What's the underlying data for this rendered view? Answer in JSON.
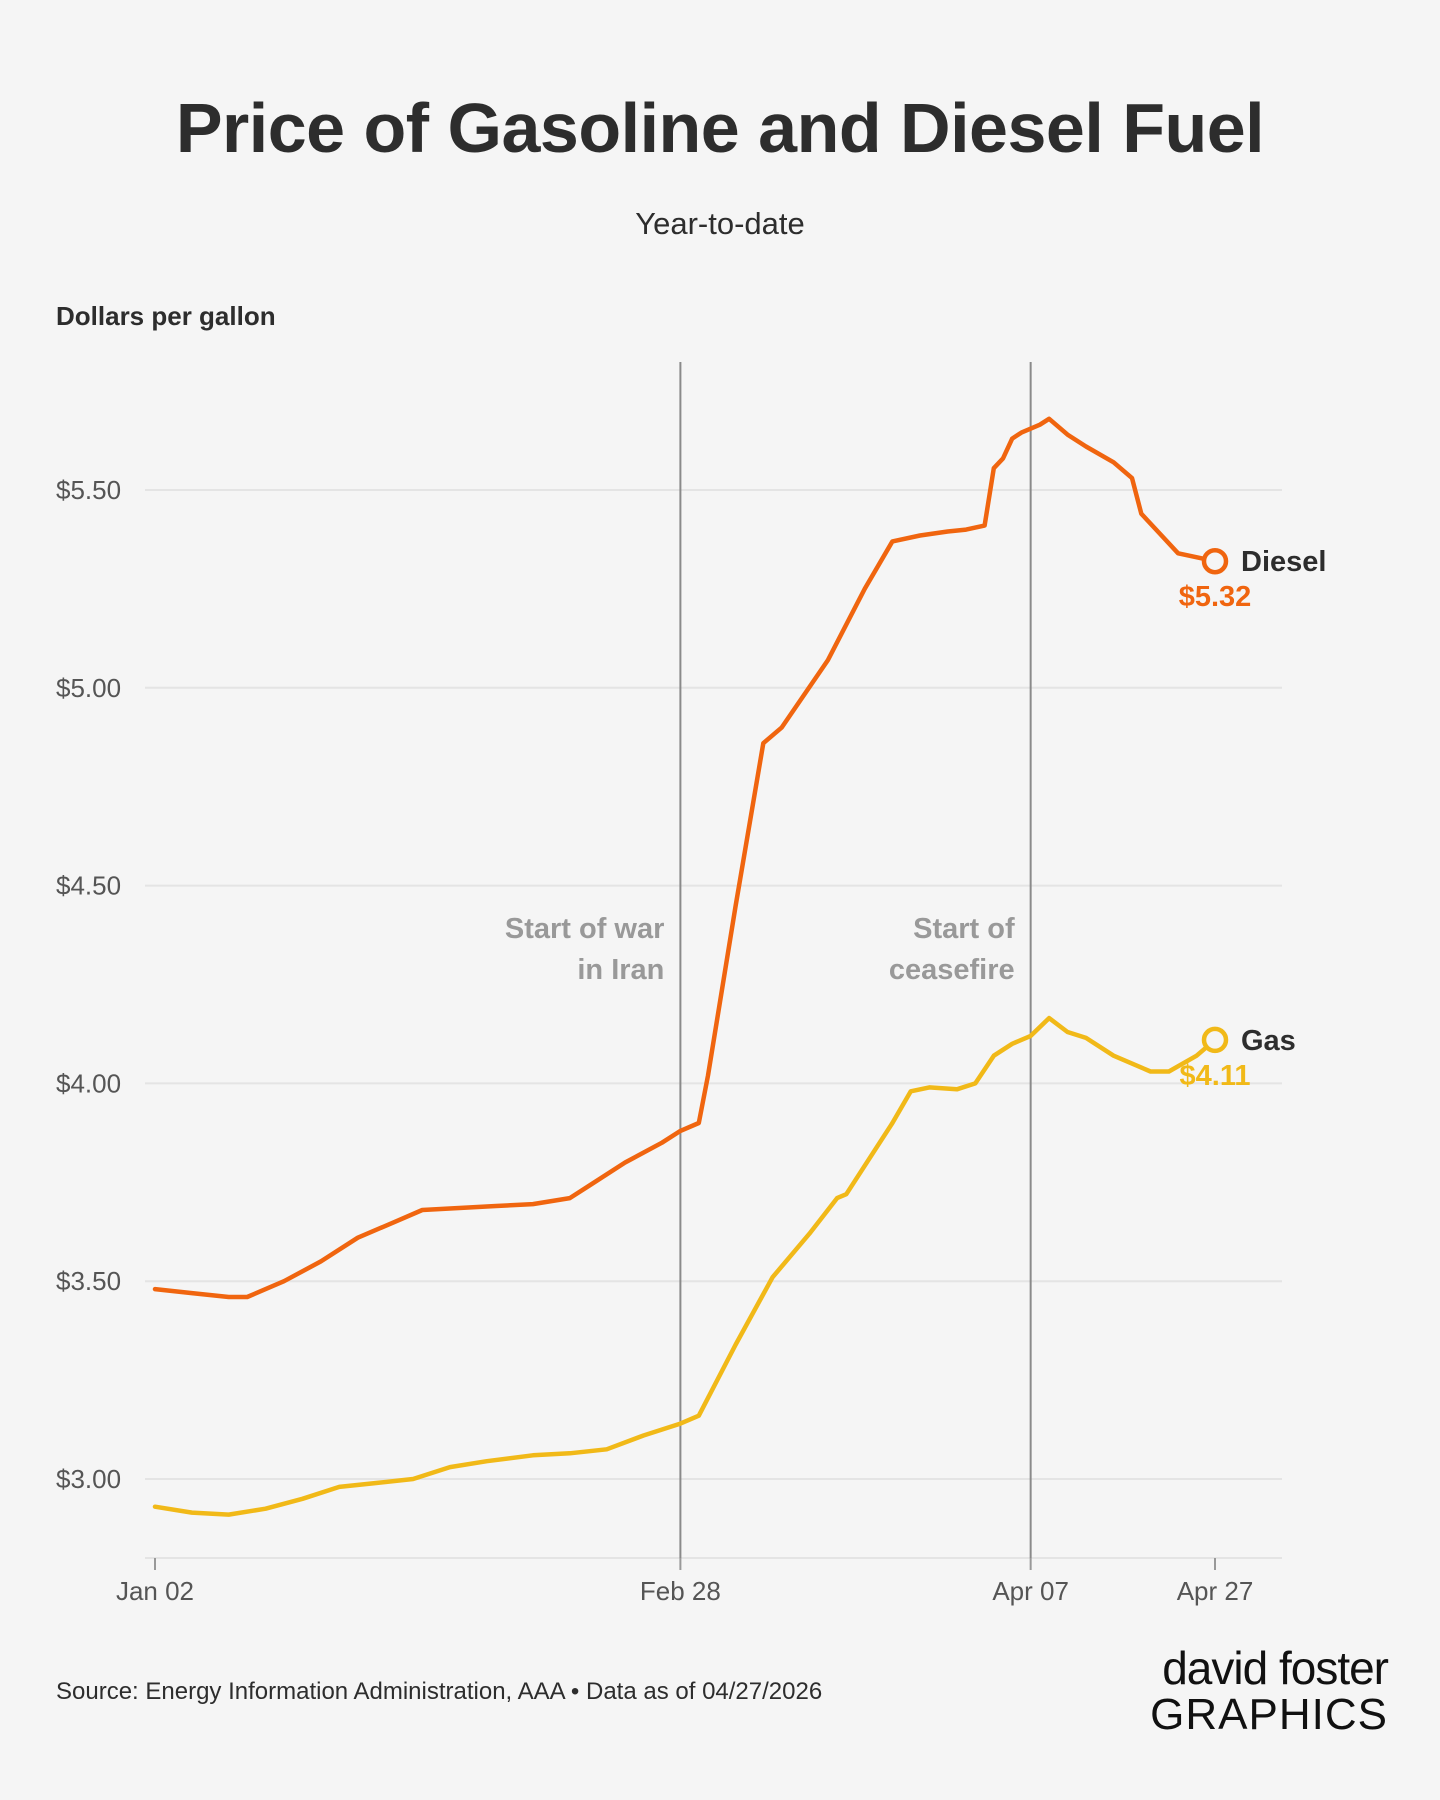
{
  "title": "Price of Gasoline and Diesel Fuel",
  "subtitle": "Year-to-date",
  "source": "Source: Energy Information Administration, AAA • Data as of 04/27/2026",
  "logo": {
    "line1": "david foster",
    "line2": "GRAPHICS"
  },
  "colors": {
    "diesel": "#f0650f",
    "gas": "#f1b918",
    "grid": "#e4e4e4",
    "vline": "#8a8a8a",
    "annotation": "#999999",
    "text": "#2d2d2d"
  },
  "chart_data": {
    "type": "line",
    "title": "Price of Gasoline and Diesel Fuel",
    "subtitle": "Year-to-date",
    "ylabel": "Dollars per gallon",
    "ylim": [
      2.8,
      5.75
    ],
    "yticks": [
      3.0,
      3.5,
      4.0,
      4.5,
      5.0,
      5.5
    ],
    "ytick_labels": [
      "$3.00",
      "$3.50",
      "$4.00",
      "$4.50",
      "$5.00",
      "$5.50"
    ],
    "xlim": [
      "2026-01-02",
      "2026-04-27"
    ],
    "xticks": [
      "2026-01-02",
      "2026-02-28",
      "2026-04-07",
      "2026-04-27"
    ],
    "xtick_labels": [
      "Jan 02",
      "Feb 28",
      "Apr 07",
      "Apr 27"
    ],
    "grid": true,
    "legend": "direct labels at line ends",
    "annotations": [
      {
        "date": "2026-02-28",
        "text_lines": [
          "Start of war",
          "in Iran"
        ]
      },
      {
        "date": "2026-04-07",
        "text_lines": [
          "Start of",
          "ceasefire"
        ]
      }
    ],
    "series": [
      {
        "name": "Diesel",
        "end_label": "$5.32",
        "points": [
          [
            "2026-01-02",
            3.48
          ],
          [
            "2026-01-06",
            3.47
          ],
          [
            "2026-01-10",
            3.46
          ],
          [
            "2026-01-12",
            3.46
          ],
          [
            "2026-01-16",
            3.5
          ],
          [
            "2026-01-20",
            3.55
          ],
          [
            "2026-01-24",
            3.61
          ],
          [
            "2026-01-28",
            3.65
          ],
          [
            "2026-01-31",
            3.68
          ],
          [
            "2026-02-04",
            3.685
          ],
          [
            "2026-02-08",
            3.69
          ],
          [
            "2026-02-12",
            3.695
          ],
          [
            "2026-02-16",
            3.71
          ],
          [
            "2026-02-18",
            3.74
          ],
          [
            "2026-02-22",
            3.8
          ],
          [
            "2026-02-26",
            3.85
          ],
          [
            "2026-02-28",
            3.88
          ],
          [
            "2026-03-02",
            3.9
          ],
          [
            "2026-03-03",
            4.02
          ],
          [
            "2026-03-06",
            4.45
          ],
          [
            "2026-03-09",
            4.86
          ],
          [
            "2026-03-11",
            4.9
          ],
          [
            "2026-03-16",
            5.07
          ],
          [
            "2026-03-20",
            5.25
          ],
          [
            "2026-03-23",
            5.37
          ],
          [
            "2026-03-26",
            5.385
          ],
          [
            "2026-03-29",
            5.395
          ],
          [
            "2026-03-31",
            5.4
          ],
          [
            "2026-04-01",
            5.405
          ],
          [
            "2026-04-02",
            5.41
          ],
          [
            "2026-04-03",
            5.555
          ],
          [
            "2026-04-04",
            5.58
          ],
          [
            "2026-04-05",
            5.63
          ],
          [
            "2026-04-06",
            5.645
          ],
          [
            "2026-04-08",
            5.665
          ],
          [
            "2026-04-09",
            5.68
          ],
          [
            "2026-04-11",
            5.64
          ],
          [
            "2026-04-13",
            5.61
          ],
          [
            "2026-04-16",
            5.57
          ],
          [
            "2026-04-18",
            5.53
          ],
          [
            "2026-04-19",
            5.44
          ],
          [
            "2026-04-21",
            5.39
          ],
          [
            "2026-04-23",
            5.34
          ],
          [
            "2026-04-27",
            5.32
          ]
        ]
      },
      {
        "name": "Gas",
        "end_label": "$4.11",
        "points": [
          [
            "2026-01-02",
            2.93
          ],
          [
            "2026-01-06",
            2.915
          ],
          [
            "2026-01-10",
            2.91
          ],
          [
            "2026-01-14",
            2.925
          ],
          [
            "2026-01-18",
            2.95
          ],
          [
            "2026-01-22",
            2.98
          ],
          [
            "2026-01-26",
            2.99
          ],
          [
            "2026-01-30",
            3.0
          ],
          [
            "2026-02-03",
            3.03
          ],
          [
            "2026-02-07",
            3.045
          ],
          [
            "2026-02-12",
            3.06
          ],
          [
            "2026-02-16",
            3.065
          ],
          [
            "2026-02-20",
            3.075
          ],
          [
            "2026-02-24",
            3.11
          ],
          [
            "2026-02-28",
            3.14
          ],
          [
            "2026-03-02",
            3.16
          ],
          [
            "2026-03-06",
            3.34
          ],
          [
            "2026-03-10",
            3.51
          ],
          [
            "2026-03-14",
            3.62
          ],
          [
            "2026-03-17",
            3.71
          ],
          [
            "2026-03-18",
            3.72
          ],
          [
            "2026-03-23",
            3.9
          ],
          [
            "2026-03-25",
            3.98
          ],
          [
            "2026-03-27",
            3.99
          ],
          [
            "2026-03-30",
            3.985
          ],
          [
            "2026-04-01",
            4.0
          ],
          [
            "2026-04-03",
            4.07
          ],
          [
            "2026-04-05",
            4.1
          ],
          [
            "2026-04-07",
            4.12
          ],
          [
            "2026-04-09",
            4.165
          ],
          [
            "2026-04-11",
            4.13
          ],
          [
            "2026-04-13",
            4.115
          ],
          [
            "2026-04-16",
            4.07
          ],
          [
            "2026-04-18",
            4.05
          ],
          [
            "2026-04-20",
            4.03
          ],
          [
            "2026-04-22",
            4.03
          ],
          [
            "2026-04-25",
            4.07
          ],
          [
            "2026-04-27",
            4.11
          ]
        ]
      }
    ]
  }
}
